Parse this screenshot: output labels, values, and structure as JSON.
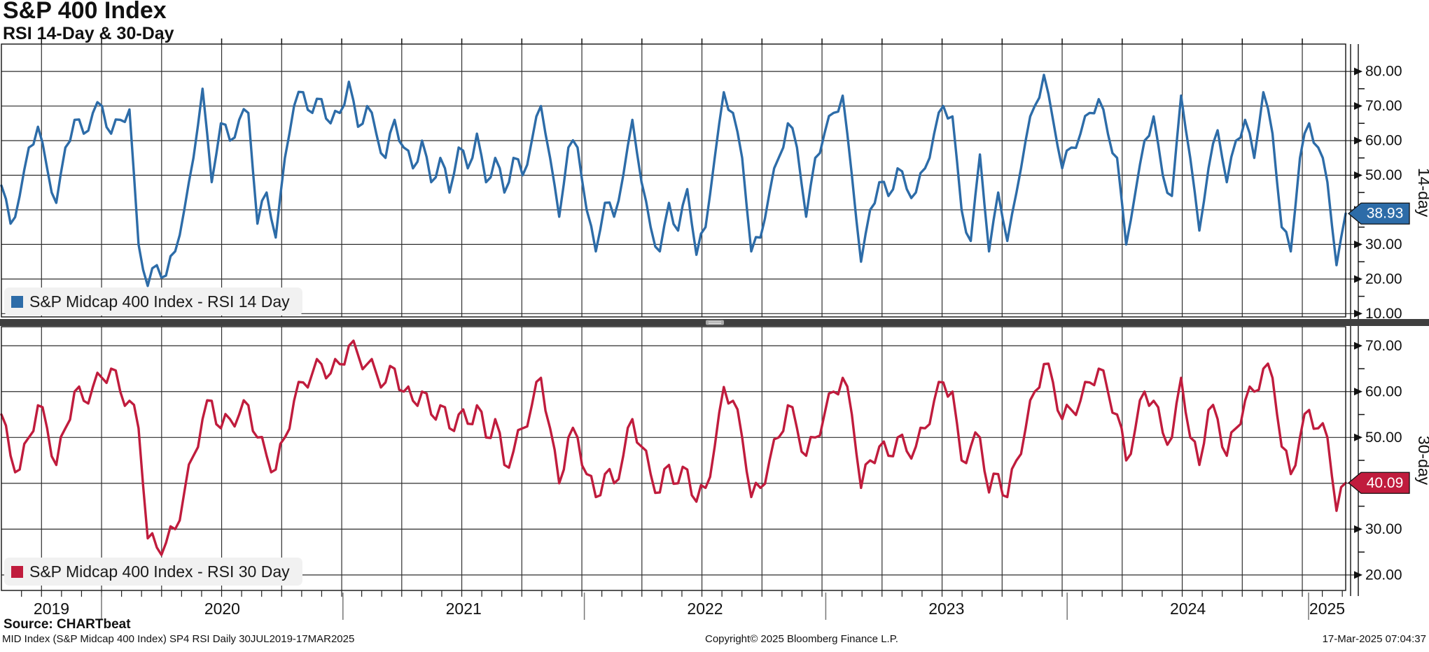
{
  "header": {
    "title": "S&P 400 Index",
    "subtitle": "RSI 14-Day & 30-Day"
  },
  "colors": {
    "rsi14": "#2d6ca8",
    "rsi30": "#c01c3d",
    "grid": "#2e2e2e",
    "divider": "#3f3f3f",
    "legend_bg": "#f1f1f1"
  },
  "panels": [
    {
      "id": "rsi14",
      "axis_label": "14-day",
      "legend": "S&P Midcap 400 Index - RSI 14 Day",
      "last_value": "38.93",
      "y_ticks": [
        80,
        70,
        60,
        50,
        40,
        30,
        20,
        10
      ],
      "y_minor_ticks": [
        75,
        65,
        55,
        45,
        35,
        25,
        15
      ]
    },
    {
      "id": "rsi30",
      "axis_label": "30-day",
      "legend": "S&P Midcap 400 Index - RSI 30 Day",
      "last_value": "40.09",
      "y_ticks": [
        70,
        60,
        50,
        40,
        30,
        20
      ],
      "y_minor_ticks": [
        65,
        55,
        45,
        35,
        25
      ]
    }
  ],
  "x_axis": {
    "years": [
      "2019",
      "2020",
      "2021",
      "2022",
      "2023",
      "2024",
      "2025"
    ]
  },
  "footer": {
    "source": "Source: CHARTbeat",
    "left": "MID Index (S&P Midcap 400 Index) SP4 RSI  Daily 30JUL2019-17MAR2025",
    "center": "Copyright© 2025 Bloomberg Finance L.P.",
    "right": "17-Mar-2025 07:04:37"
  },
  "chart_data": {
    "type": "line",
    "title": "S&P 400 Index — RSI 14-Day & 30-Day",
    "x_range": [
      "30JUL2019",
      "17MAR2025"
    ],
    "sampling": "approx. biweekly samples read from daily chart",
    "x_gridlines": "quarterly",
    "legend_position": "bottom-left of each panel",
    "panels": [
      {
        "name": "RSI 14 Day",
        "side": "right",
        "y_tick_range": [
          10,
          80
        ]
      },
      {
        "name": "RSI 30 Day",
        "side": "right",
        "y_tick_range": [
          20,
          70
        ]
      }
    ],
    "series": [
      {
        "name": "S&P Midcap 400 Index - RSI 14 Day",
        "panel": 0,
        "color": "#2d6ca8",
        "last_value": 38.93,
        "values": [
          47,
          36,
          44,
          58,
          64,
          52,
          42,
          58,
          66,
          62,
          68,
          70,
          62,
          66,
          69,
          30,
          18,
          24,
          21,
          28,
          40,
          55,
          75,
          48,
          65,
          60,
          66,
          68,
          36,
          45,
          32,
          55,
          70,
          74,
          68,
          72,
          65,
          68,
          77,
          64,
          70,
          62,
          55,
          66,
          58,
          52,
          60,
          48,
          55,
          45,
          58,
          52,
          62,
          48,
          55,
          45,
          55,
          50,
          60,
          70,
          55,
          38,
          58,
          58,
          40,
          28,
          42,
          38,
          50,
          66,
          48,
          35,
          28,
          42,
          34,
          46,
          27,
          35,
          55,
          74,
          68,
          55,
          28,
          32,
          45,
          55,
          65,
          58,
          38,
          55,
          62,
          68,
          73,
          50,
          25,
          40,
          48,
          44,
          52,
          46,
          45,
          52,
          62,
          70,
          67,
          40,
          31,
          56,
          28,
          45,
          31,
          45,
          60,
          70,
          79,
          66,
          52,
          58,
          62,
          68,
          72,
          62,
          55,
          30,
          45,
          60,
          67,
          50,
          44,
          73,
          55,
          34,
          52,
          63,
          48,
          60,
          66,
          55,
          74,
          62,
          35,
          28,
          55,
          65,
          58,
          48,
          24,
          38.93
        ]
      },
      {
        "name": "S&P Midcap 400 Index - RSI 30 Day",
        "panel": 1,
        "color": "#c01c3d",
        "last_value": 40.09,
        "values": [
          55,
          46,
          43,
          50,
          57,
          52,
          44,
          52,
          60,
          58,
          61,
          63,
          65,
          60,
          58,
          52,
          28,
          26,
          27,
          30,
          38,
          46,
          54,
          58,
          52,
          54,
          55,
          57,
          50,
          46,
          43,
          50,
          58,
          62,
          64,
          66,
          64,
          66,
          70,
          68,
          66,
          64,
          62,
          65,
          60,
          58,
          60,
          55,
          57,
          52,
          55,
          53,
          57,
          50,
          54,
          44,
          47,
          52,
          57,
          63,
          52,
          40,
          50,
          50,
          42,
          37,
          42,
          40,
          46,
          54,
          48,
          42,
          38,
          44,
          40,
          43,
          36,
          39,
          48,
          61,
          58,
          50,
          37,
          39,
          45,
          50,
          57,
          52,
          46,
          50,
          55,
          60,
          63,
          55,
          39,
          45,
          48,
          46,
          50,
          47,
          48,
          52,
          58,
          62,
          60,
          45,
          48,
          50,
          38,
          42,
          37,
          45,
          52,
          60,
          66,
          62,
          54,
          56,
          58,
          62,
          65,
          60,
          55,
          45,
          52,
          60,
          58,
          51,
          50,
          63,
          50,
          44,
          56,
          54,
          46,
          52,
          58,
          60,
          65,
          63,
          48,
          42,
          50,
          56,
          52,
          50,
          34,
          40.09
        ]
      }
    ]
  }
}
